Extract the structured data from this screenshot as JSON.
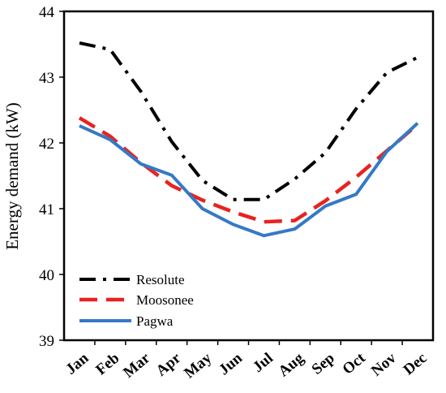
{
  "chart_data": {
    "type": "line",
    "title": "",
    "xlabel": "",
    "ylabel": "Energy demand (kW)",
    "ylim": [
      39,
      44
    ],
    "yticks": [
      "39",
      "40",
      "41",
      "42",
      "43",
      "44"
    ],
    "categories": [
      "Jan",
      "Feb",
      "Mar",
      "Apr",
      "May",
      "Jun",
      "Jul",
      "Aug",
      "Sep",
      "Oct",
      "Nov",
      "Dec"
    ],
    "grid": false,
    "legend_position": "bottom-left",
    "series": [
      {
        "name": "Resolute",
        "color": "#000000",
        "dash": "dash-dot",
        "values": [
          43.52,
          43.42,
          42.78,
          42.02,
          41.43,
          41.14,
          41.14,
          41.45,
          41.85,
          42.52,
          43.07,
          43.3
        ]
      },
      {
        "name": "Moosonee",
        "color": "#e8231f",
        "dash": "long-dash",
        "values": [
          42.38,
          42.1,
          41.7,
          41.35,
          41.13,
          40.95,
          40.8,
          40.82,
          41.12,
          41.48,
          41.88,
          42.28
        ]
      },
      {
        "name": "Pagwa",
        "color": "#3579c6",
        "dash": "solid",
        "values": [
          42.26,
          42.05,
          41.68,
          41.51,
          41.0,
          40.76,
          40.59,
          40.69,
          41.04,
          41.22,
          41.87,
          42.3
        ]
      }
    ]
  }
}
